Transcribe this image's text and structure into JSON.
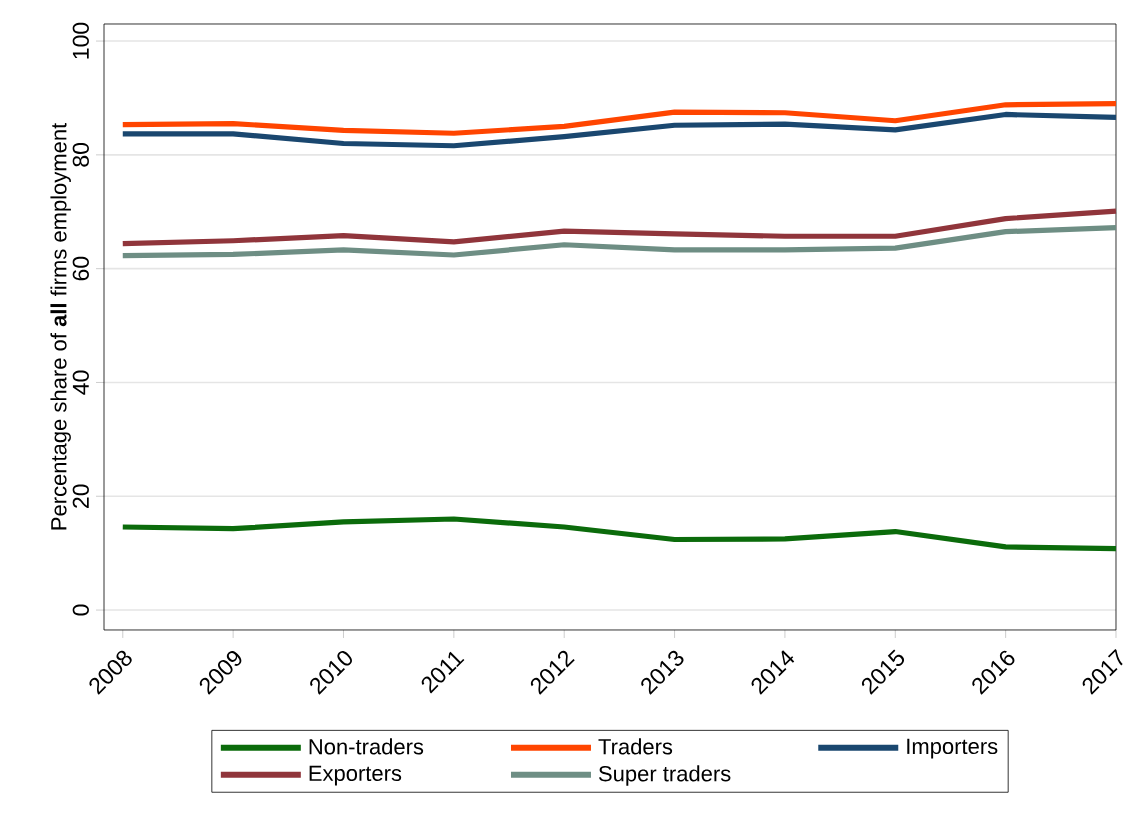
{
  "chart_data": {
    "type": "line",
    "ylabel": "Percentage share of **all** firms employment",
    "categories": [
      "2008",
      "2009",
      "2010",
      "2011",
      "2012",
      "2013",
      "2014",
      "2015",
      "2016",
      "2017"
    ],
    "series": [
      {
        "name": "Non-traders",
        "color": "#0b6b0b",
        "values": [
          14.6,
          14.3,
          15.5,
          16.0,
          14.6,
          12.4,
          12.5,
          13.8,
          11.1,
          10.8
        ]
      },
      {
        "name": "Traders",
        "color": "#ff4500",
        "values": [
          85.3,
          85.5,
          84.3,
          83.8,
          85.0,
          87.5,
          87.4,
          86.0,
          88.8,
          89.0
        ]
      },
      {
        "name": "Importers",
        "color": "#1a476f",
        "values": [
          83.7,
          83.7,
          82.0,
          81.6,
          83.2,
          85.2,
          85.4,
          84.4,
          87.1,
          86.6
        ]
      },
      {
        "name": "Exporters",
        "color": "#90353b",
        "values": [
          64.4,
          64.9,
          65.8,
          64.7,
          66.6,
          66.1,
          65.7,
          65.7,
          68.8,
          70.1
        ]
      },
      {
        "name": "Super traders",
        "color": "#6e8e84",
        "values": [
          62.3,
          62.5,
          63.3,
          62.4,
          64.2,
          63.3,
          63.3,
          63.6,
          66.5,
          67.2
        ]
      }
    ],
    "ylim": [
      -3.5,
      103
    ],
    "yticks": [
      0,
      20,
      40,
      60,
      80,
      100
    ],
    "grid": "y",
    "legend": "bottom"
  }
}
